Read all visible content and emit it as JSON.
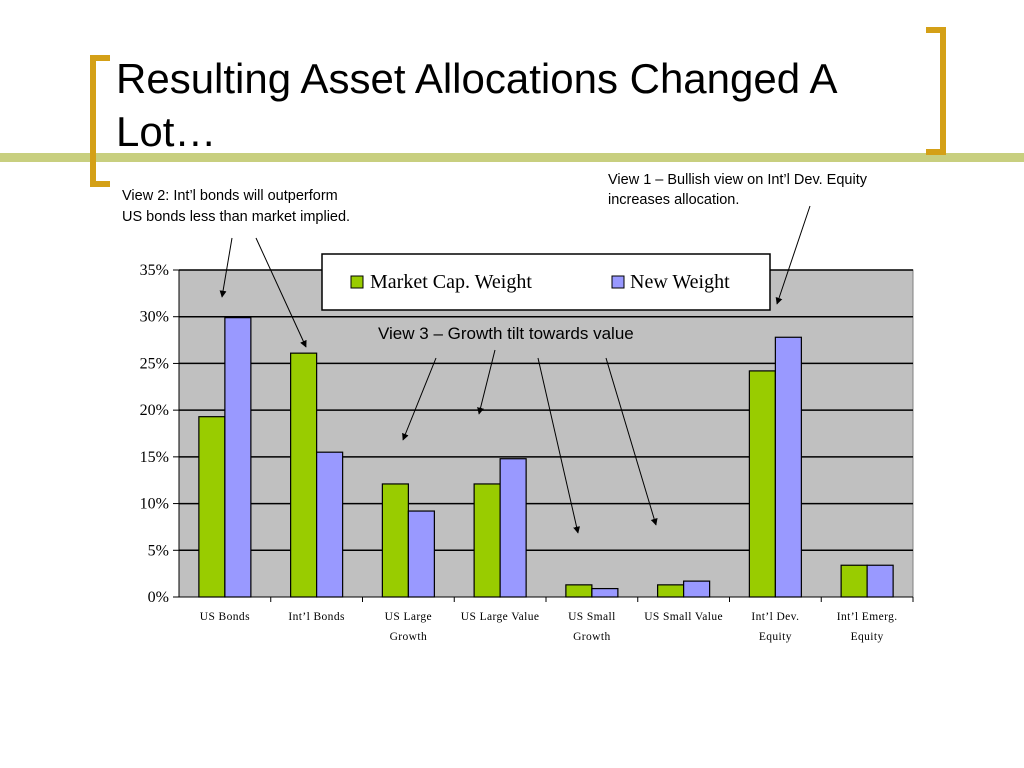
{
  "slide": {
    "title_line1": "Resulting Asset Allocations Changed A",
    "title_line2": "Lot…",
    "colors": {
      "bracket": "#D4A017",
      "stripe": "#C8CF7F"
    }
  },
  "annotations": {
    "view2_line1": "View 2: Int’l bonds will outperform",
    "view2_line2": "US bonds less than market implied.",
    "view1_line1": "View 1 – Bullish view on Int’l Dev. Equity",
    "view1_line2": "increases allocation.",
    "view3": "View 3 – Growth tilt towards value"
  },
  "chart_data": {
    "type": "bar",
    "categories": [
      [
        "US Bonds"
      ],
      [
        "Int’l Bonds"
      ],
      [
        "US Large",
        "Growth"
      ],
      [
        "US Large Value"
      ],
      [
        "US Small",
        "Growth"
      ],
      [
        "US Small Value"
      ],
      [
        "Int’l Dev.",
        "Equity"
      ],
      [
        "Int’l Emerg.",
        "Equity"
      ]
    ],
    "series": [
      {
        "name": "Market Cap. Weight",
        "color": "#99CC00",
        "values": [
          19.3,
          26.1,
          12.1,
          12.1,
          1.3,
          1.3,
          24.2,
          3.4
        ]
      },
      {
        "name": "New Weight",
        "color": "#9999FF",
        "values": [
          29.9,
          15.5,
          9.2,
          14.8,
          0.9,
          1.7,
          27.8,
          3.4
        ]
      }
    ],
    "yticks": [
      "0%",
      "5%",
      "10%",
      "15%",
      "20%",
      "25%",
      "30%",
      "35%"
    ],
    "ylim": [
      0,
      35
    ],
    "grid": true,
    "plot_background": "#C0C0C0",
    "legend_position": "top-center"
  }
}
